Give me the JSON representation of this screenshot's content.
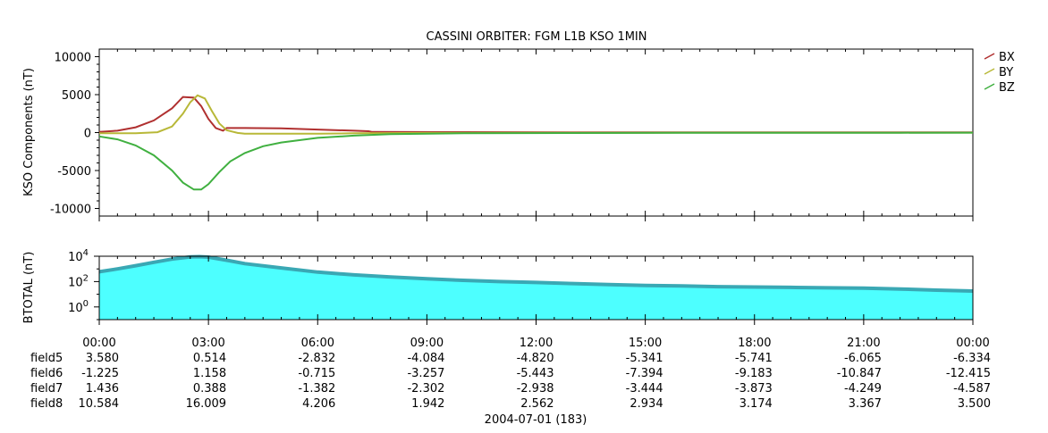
{
  "chart_data": [
    {
      "type": "line",
      "title": "CASSINI ORBITER: FGM L1B KSO 1MIN",
      "ylabel": "KSO Components (nT)",
      "xlim": [
        0,
        24
      ],
      "ylim": [
        -11000,
        11000
      ],
      "yticks": [
        10000,
        5000,
        0,
        -5000,
        -10000
      ],
      "legend_placement": "top-right-outside",
      "grid": false,
      "series": [
        {
          "name": "BX",
          "color": "#b03030",
          "x": [
            0,
            0.5,
            1.0,
            1.5,
            2.0,
            2.3,
            2.6,
            2.8,
            3.0,
            3.2,
            3.4,
            3.5,
            4,
            5,
            6,
            7,
            7.4,
            7.5,
            10,
            13,
            16,
            19,
            22,
            24
          ],
          "y": [
            100,
            250,
            700,
            1600,
            3200,
            4700,
            4600,
            3500,
            1800,
            600,
            250,
            600,
            600,
            550,
            400,
            250,
            180,
            80,
            60,
            40,
            30,
            20,
            20,
            20
          ]
        },
        {
          "name": "BY",
          "color": "#b8b838",
          "x": [
            0,
            1,
            1.6,
            2.0,
            2.3,
            2.5,
            2.7,
            2.9,
            3.1,
            3.3,
            3.5,
            3.8,
            4,
            5,
            6,
            7,
            9,
            12,
            15,
            18,
            21,
            24
          ],
          "y": [
            -100,
            -100,
            50,
            800,
            2500,
            4000,
            4900,
            4500,
            2800,
            1200,
            300,
            -50,
            -150,
            -150,
            -150,
            -100,
            -50,
            -30,
            -20,
            -10,
            -10,
            -10
          ]
        },
        {
          "name": "BZ",
          "color": "#40b040",
          "x": [
            0,
            0.5,
            1.0,
            1.5,
            2.0,
            2.3,
            2.6,
            2.8,
            3.0,
            3.3,
            3.6,
            4,
            4.5,
            5,
            6,
            7,
            8,
            10,
            13,
            16,
            19,
            22,
            24
          ],
          "y": [
            -500,
            -900,
            -1700,
            -3000,
            -5000,
            -6600,
            -7500,
            -7500,
            -6800,
            -5200,
            -3800,
            -2700,
            -1800,
            -1300,
            -700,
            -400,
            -200,
            -100,
            -60,
            -40,
            -30,
            -20,
            -10
          ]
        }
      ]
    },
    {
      "type": "area",
      "ylabel": "BTOTAL (nT)",
      "yscale": "log",
      "xlim": [
        0,
        24
      ],
      "ylim": [
        0.1,
        10000
      ],
      "yticks": [
        {
          "base": "10",
          "exp": "4",
          "value": 10000
        },
        {
          "base": "10",
          "exp": "2",
          "value": 100
        },
        {
          "base": "10",
          "exp": "0",
          "value": 1
        }
      ],
      "grid": false,
      "series": [
        {
          "name": "",
          "fill": "#4dffff",
          "edge": "#3aa8b4",
          "x": [
            0,
            0.5,
            1,
            1.5,
            2,
            2.5,
            2.75,
            3,
            3.5,
            4,
            5,
            6,
            7,
            8,
            9,
            10,
            11,
            12,
            13,
            14,
            15,
            16,
            17,
            18,
            19,
            20,
            21,
            22,
            23,
            24
          ],
          "y": [
            600,
            1000,
            1800,
            3300,
            6000,
            8800,
            9200,
            8500,
            4800,
            2600,
            1200,
            560,
            340,
            230,
            165,
            125,
            100,
            85,
            70,
            58,
            50,
            45,
            40,
            37,
            35,
            32,
            30,
            26,
            21,
            18
          ]
        }
      ]
    }
  ],
  "xaxis": {
    "tick_labels": [
      "00:00",
      "03:00",
      "06:00",
      "09:00",
      "12:00",
      "15:00",
      "18:00",
      "21:00",
      "00:00"
    ],
    "date_label": "2004-07-01 (183)"
  },
  "ephemeris_rows": [
    {
      "label": "field5",
      "values": [
        "3.580",
        "0.514",
        "-2.832",
        "-4.084",
        "-4.820",
        "-5.341",
        "-5.741",
        "-6.065",
        "-6.334"
      ]
    },
    {
      "label": "field6",
      "values": [
        "-1.225",
        "1.158",
        "-0.715",
        "-3.257",
        "-5.443",
        "-7.394",
        "-9.183",
        "-10.847",
        "-12.415"
      ]
    },
    {
      "label": "field7",
      "values": [
        "1.436",
        "0.388",
        "-1.382",
        "-2.302",
        "-2.938",
        "-3.444",
        "-3.873",
        "-4.249",
        "-4.587"
      ]
    },
    {
      "label": "field8",
      "values": [
        "10.584",
        "16.009",
        "4.206",
        "1.942",
        "2.562",
        "2.934",
        "3.174",
        "3.367",
        "3.500"
      ]
    }
  ]
}
